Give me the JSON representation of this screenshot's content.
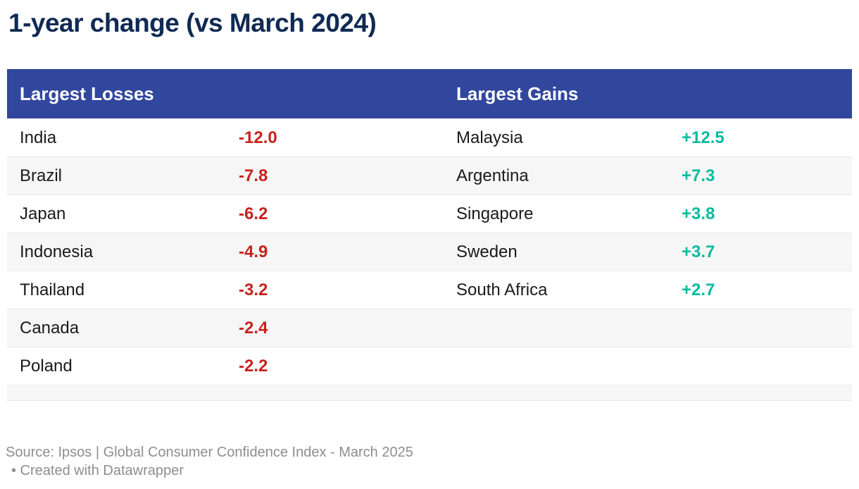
{
  "title": "1-year change (vs March 2024)",
  "table": {
    "headers": {
      "losses": "Largest Losses",
      "gains": "Largest Gains"
    },
    "rows": [
      {
        "loss_country": "India",
        "loss_value": "-12.0",
        "gain_country": "Malaysia",
        "gain_value": "+12.5"
      },
      {
        "loss_country": "Brazil",
        "loss_value": "-7.8",
        "gain_country": "Argentina",
        "gain_value": "+7.3"
      },
      {
        "loss_country": "Japan",
        "loss_value": "-6.2",
        "gain_country": "Singapore",
        "gain_value": "+3.8"
      },
      {
        "loss_country": "Indonesia",
        "loss_value": "-4.9",
        "gain_country": "Sweden",
        "gain_value": "+3.7"
      },
      {
        "loss_country": "Thailand",
        "loss_value": "-3.2",
        "gain_country": "South Africa",
        "gain_value": "+2.7"
      },
      {
        "loss_country": "Canada",
        "loss_value": "-2.4",
        "gain_country": "",
        "gain_value": ""
      },
      {
        "loss_country": "Poland",
        "loss_value": "-2.2",
        "gain_country": "",
        "gain_value": ""
      }
    ]
  },
  "footer": {
    "source": "Source: Ipsos | Global Consumer Confidence Index - March 2025",
    "credit": "• Created with Datawrapper"
  },
  "colors": {
    "title": "#102a54",
    "header_bg": "#31479e",
    "loss": "#c8211f",
    "gain": "#09bb9f",
    "row_alt": "#f6f6f6",
    "row_border": "#e8e8e8",
    "footer_text": "#8e8e8e"
  },
  "chart_data": {
    "type": "table",
    "title": "1-year change (vs March 2024)",
    "columns": [
      "Largest Losses",
      "Largest Gains"
    ],
    "losses": [
      {
        "country": "India",
        "value": -12.0
      },
      {
        "country": "Brazil",
        "value": -7.8
      },
      {
        "country": "Japan",
        "value": -6.2
      },
      {
        "country": "Indonesia",
        "value": -4.9
      },
      {
        "country": "Thailand",
        "value": -3.2
      },
      {
        "country": "Canada",
        "value": -2.4
      },
      {
        "country": "Poland",
        "value": -2.2
      }
    ],
    "gains": [
      {
        "country": "Malaysia",
        "value": 12.5
      },
      {
        "country": "Argentina",
        "value": 7.3
      },
      {
        "country": "Singapore",
        "value": 3.8
      },
      {
        "country": "Sweden",
        "value": 3.7
      },
      {
        "country": "South Africa",
        "value": 2.7
      }
    ]
  }
}
